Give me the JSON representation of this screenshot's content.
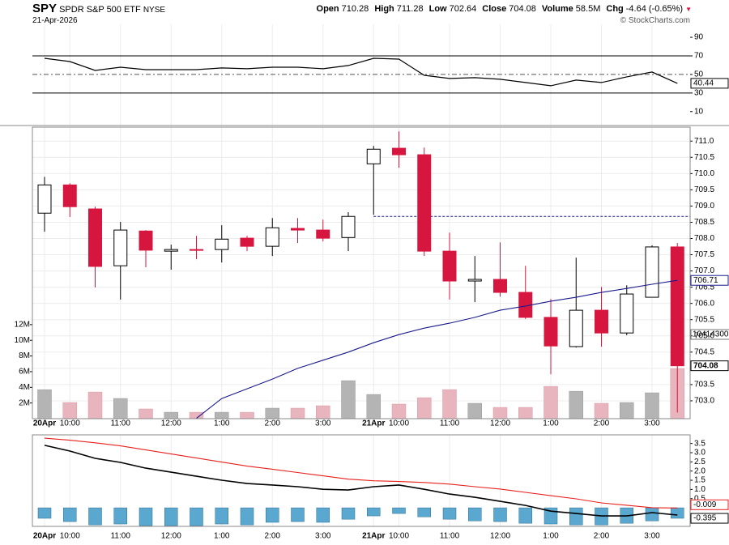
{
  "header": {
    "symbol": "SPY",
    "name": "SPDR S&P 500 ETF",
    "exchange": "NYSE",
    "date": "21-Apr-2026",
    "watermark": "© StockCharts.com",
    "quote": [
      {
        "label": "Open",
        "value": "710.28"
      },
      {
        "label": "High",
        "value": "711.28"
      },
      {
        "label": "Low",
        "value": "702.64"
      },
      {
        "label": "Close",
        "value": "704.08"
      },
      {
        "label": "Volume",
        "value": "58.5M"
      },
      {
        "label": "Chg",
        "value": "-4.64 (-0.65%)"
      }
    ]
  },
  "chart_data": [
    {
      "type": "line",
      "ylim": [
        -5,
        104
      ],
      "yticks": [
        90,
        70,
        50,
        30,
        10
      ],
      "levels": [
        70,
        50,
        30
      ],
      "level_styles": [
        "solid",
        "dashed",
        "solid"
      ],
      "series": [
        {
          "color": "#000000",
          "values": [
            67.4,
            63.9,
            54.3,
            57.8,
            55.2,
            55.2,
            55.2,
            57.0,
            56.1,
            57.8,
            57.8,
            56.1,
            59.6,
            67.4,
            66.5,
            49.1,
            45.7,
            46.5,
            44.8,
            41.3,
            37.8,
            43.9,
            41.3,
            47.4,
            52.6,
            40.44
          ],
          "end_label": "40.44"
        }
      ]
    },
    {
      "type": "candlestick",
      "categories": [
        "20Apr",
        "10:00",
        null,
        "11:00",
        null,
        "12:00",
        null,
        "1:00",
        null,
        "2:00",
        null,
        "3:00",
        null,
        "21Apr",
        "10:00",
        null,
        "11:00",
        null,
        "12:00",
        null,
        "1:00",
        null,
        "2:00",
        null,
        "3:00",
        null
      ],
      "open": [
        708.78,
        709.65,
        708.91,
        707.16,
        708.23,
        707.61,
        707.66,
        707.66,
        708.01,
        707.76,
        708.31,
        708.26,
        708.03,
        710.3,
        710.78,
        710.58,
        707.61,
        706.69,
        706.74,
        706.34,
        705.57,
        704.67,
        705.79,
        705.09,
        706.19,
        707.74
      ],
      "high": [
        709.9,
        709.7,
        708.98,
        708.51,
        708.26,
        707.81,
        708.08,
        708.41,
        708.08,
        708.63,
        708.63,
        708.58,
        708.81,
        710.85,
        711.3,
        710.8,
        708.18,
        707.46,
        707.88,
        707.16,
        706.14,
        707.41,
        706.51,
        706.56,
        707.79,
        707.86
      ],
      "low": [
        708.21,
        708.66,
        706.49,
        706.12,
        707.11,
        707.04,
        707.36,
        707.26,
        707.61,
        707.46,
        707.86,
        707.91,
        707.61,
        708.73,
        710.18,
        707.46,
        706.12,
        706.04,
        706.21,
        705.52,
        703.82,
        704.64,
        704.67,
        705.02,
        706.19,
        702.64
      ],
      "close": [
        709.65,
        708.98,
        707.14,
        708.26,
        707.64,
        707.66,
        707.64,
        707.98,
        707.76,
        708.33,
        708.26,
        708.01,
        708.68,
        710.75,
        710.58,
        707.61,
        706.69,
        706.74,
        706.34,
        705.57,
        704.69,
        705.79,
        705.09,
        706.29,
        707.74,
        704.08
      ],
      "close_label": "704.08",
      "up_color": "#ffffff",
      "down_color": "#d6163f",
      "ylim": [
        702.45,
        711.43
      ],
      "yticks": [
        {
          "value": 703,
          "label": "703.0"
        },
        703.5,
        {
          "value": 704,
          "label": "704.0"
        },
        704.5,
        {
          "value": 705,
          "label": "705.0"
        },
        705.5,
        {
          "value": 706,
          "label": "706.0"
        },
        706.5,
        {
          "value": 707,
          "label": "707.0"
        },
        707.5,
        {
          "value": 708,
          "label": "708.0"
        },
        708.5,
        {
          "value": 709,
          "label": "709.0"
        },
        709.5,
        {
          "value": 710,
          "label": "710.0"
        },
        710.5,
        {
          "value": 711,
          "label": "711.0"
        }
      ],
      "prev_close": 708.68,
      "grid": true,
      "ma": {
        "color": "#1a1a8c",
        "values": [
          null,
          null,
          null,
          null,
          null,
          null,
          702.46,
          703.07,
          703.37,
          703.67,
          704.0,
          704.25,
          704.5,
          704.79,
          705.04,
          705.24,
          705.39,
          705.57,
          705.79,
          705.92,
          706.07,
          706.19,
          706.34,
          706.46,
          706.59,
          706.71
        ],
        "end_label": "706.71"
      },
      "volume": {
        "values": [
          3.7,
          2.06,
          3.4,
          2.58,
          1.24,
          0.82,
          0.82,
          0.82,
          0.82,
          1.34,
          1.34,
          1.65,
          4.85,
          3.09,
          1.86,
          2.68,
          3.71,
          1.96,
          1.44,
          1.44,
          4.12,
          3.5,
          1.96,
          2.06,
          3.3,
          6.39
        ],
        "up_color": "#b4b4b4",
        "down_color": "#e8b4bd",
        "ylim": [
          0,
          37.2
        ],
        "yticks": [
          {
            "value": 2,
            "label": "2M"
          },
          {
            "value": 4,
            "label": "4M"
          },
          {
            "value": 6,
            "label": "6M"
          },
          {
            "value": 8,
            "label": "8M"
          },
          {
            "value": 10,
            "label": "10M"
          },
          {
            "value": 12,
            "label": "12M"
          }
        ],
        "annotation": "10414300"
      }
    },
    {
      "type": "macd",
      "ylim": [
        -1.01,
        3.97
      ],
      "yticks": [
        0.5,
        {
          "value": 1,
          "label": "1.0"
        },
        1.5,
        {
          "value": 2,
          "label": "2.0"
        },
        2.5,
        {
          "value": 3,
          "label": "3.0"
        },
        3.5
      ],
      "series": [
        {
          "color": "#000000",
          "values": [
            3.4,
            3.09,
            2.69,
            2.47,
            2.16,
            1.94,
            1.72,
            1.5,
            1.32,
            1.24,
            1.15,
            1.01,
            0.97,
            1.15,
            1.24,
            1.01,
            0.75,
            0.57,
            0.35,
            0.13,
            -0.18,
            -0.31,
            -0.44,
            -0.44,
            -0.26,
            -0.395
          ],
          "end_label": "-0.395"
        },
        {
          "color": "#e8201c",
          "values": [
            3.79,
            3.68,
            3.54,
            3.37,
            3.15,
            2.93,
            2.71,
            2.49,
            2.27,
            2.1,
            1.92,
            1.74,
            1.56,
            1.47,
            1.43,
            1.38,
            1.29,
            1.15,
            1.02,
            0.84,
            0.66,
            0.49,
            0.27,
            0.14,
            0.01,
            -0.009
          ],
          "end_label": "-0.009"
        }
      ],
      "histogram": {
        "color": "#5aa7cf",
        "values": [
          -0.57,
          -0.75,
          -0.93,
          -0.88,
          -0.97,
          -0.97,
          -0.97,
          -0.88,
          -0.93,
          -0.79,
          -0.75,
          -0.79,
          -0.62,
          -0.44,
          -0.31,
          -0.49,
          -0.62,
          -0.71,
          -0.75,
          -0.84,
          -0.88,
          -0.93,
          -0.93,
          -0.84,
          -0.71,
          -0.57
        ]
      }
    }
  ]
}
